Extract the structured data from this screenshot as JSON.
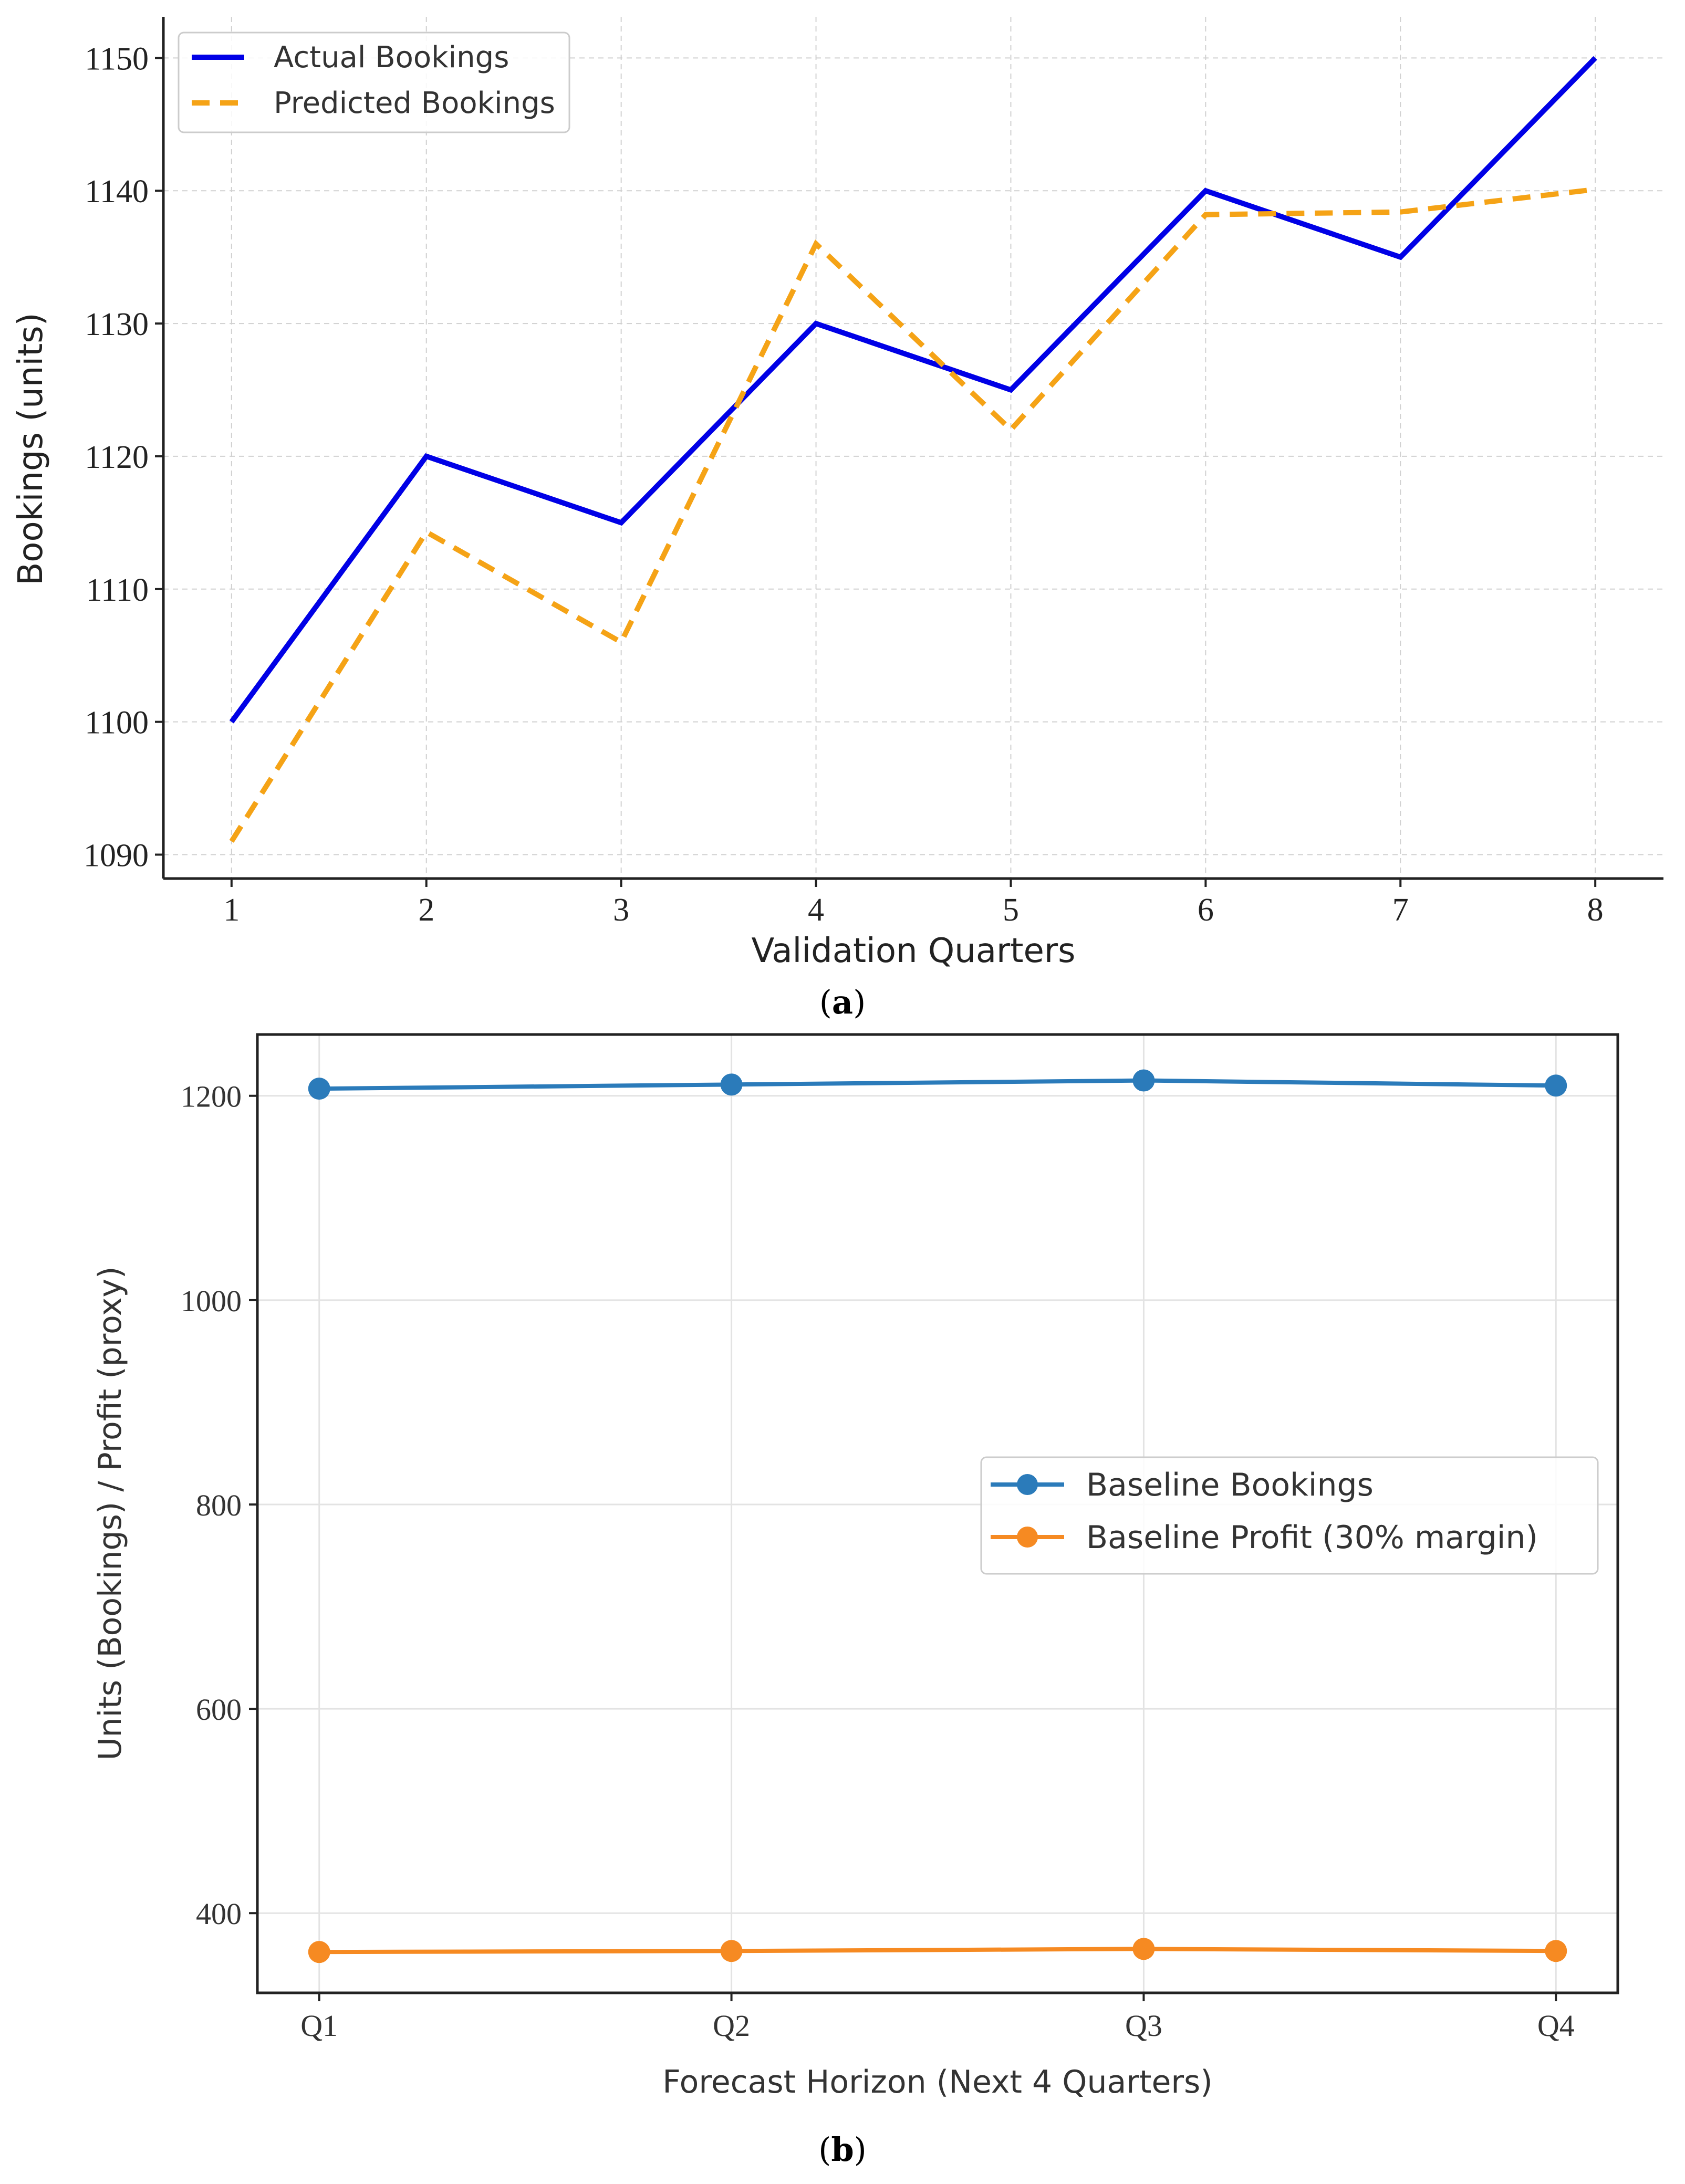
{
  "chart_data": [
    {
      "type": "line",
      "panel_label_open": "(",
      "panel_label": "a",
      "panel_label_close": ")",
      "xlabel": "Validation Quarters",
      "ylabel": "Bookings (units)",
      "x": [
        1,
        2,
        3,
        4,
        5,
        6,
        7,
        8
      ],
      "x_tick_labels": [
        "1",
        "2",
        "3",
        "4",
        "5",
        "6",
        "7",
        "8"
      ],
      "y_ticks": [
        1090,
        1100,
        1110,
        1120,
        1130,
        1140,
        1150
      ],
      "xlim": [
        0.65,
        8.35
      ],
      "ylim": [
        1088.2,
        1153.1
      ],
      "grid": true,
      "legend_position": "top-left",
      "series": [
        {
          "name": "Actual Bookings",
          "color": "#0000e6",
          "style": "solid",
          "values": [
            1100,
            1120,
            1115,
            1130,
            1125,
            1140,
            1135,
            1150
          ]
        },
        {
          "name": "Predicted Bookings",
          "color": "#f5a316",
          "style": "dashed",
          "values": [
            1091,
            1114.3,
            1106,
            1136,
            1122,
            1138.2,
            1138.4,
            1140.1
          ]
        }
      ]
    },
    {
      "type": "line",
      "panel_label_open": "(",
      "panel_label": "b",
      "panel_label_close": ")",
      "xlabel": "Forecast Horizon (Next 4 Quarters)",
      "ylabel": "Units (Bookings) / Profit (proxy)",
      "categories": [
        "Q1",
        "Q2",
        "Q3",
        "Q4"
      ],
      "y_ticks": [
        400,
        600,
        800,
        1000,
        1200
      ],
      "xlim": [
        -0.15,
        3.15
      ],
      "ylim": [
        322,
        1260
      ],
      "grid": true,
      "legend_position": "center-right",
      "series": [
        {
          "name": "Baseline Bookings",
          "color": "#2b7bba",
          "marker": "circle",
          "values": [
            1207,
            1211,
            1215,
            1210
          ]
        },
        {
          "name": "Baseline Profit (30% margin)",
          "color": "#f68a22",
          "marker": "circle",
          "values": [
            362,
            363,
            365,
            363
          ]
        }
      ]
    }
  ]
}
